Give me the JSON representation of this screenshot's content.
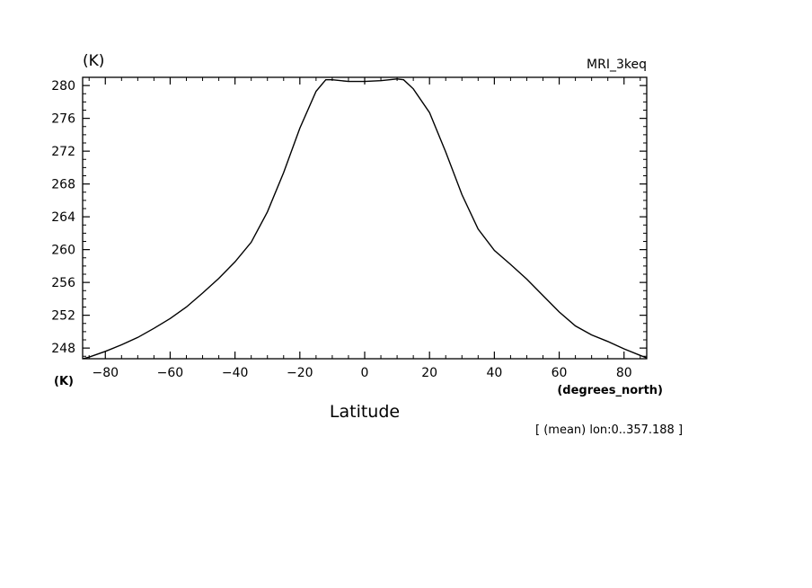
{
  "chart_data": {
    "type": "line",
    "title": "",
    "top_left_label": "(K)",
    "top_right_label": "MRI_3keq",
    "xlabel": "Latitude",
    "x_units": "(degrees_north)",
    "y_units": "(K)",
    "footnote": "[ (mean) lon:0..357.188 ]",
    "xlim": [
      -87,
      87
    ],
    "ylim": [
      246.7,
      281.0
    ],
    "x_ticks": [
      -80,
      -60,
      -40,
      -20,
      0,
      20,
      40,
      60,
      80
    ],
    "x_tick_labels": [
      "−80",
      "−60",
      "−40",
      "−20",
      "0",
      "20",
      "40",
      "60",
      "80"
    ],
    "y_ticks": [
      248,
      252,
      256,
      260,
      264,
      268,
      272,
      276,
      280
    ],
    "y_tick_labels": [
      "248",
      "252",
      "256",
      "260",
      "264",
      "268",
      "272",
      "276",
      "280"
    ],
    "grid": false,
    "series": [
      {
        "name": "",
        "x": [
          -87,
          -85,
          -80,
          -75,
          -70,
          -65,
          -60,
          -55,
          -50,
          -45,
          -40,
          -35,
          -30,
          -25,
          -20,
          -15,
          -12,
          -10,
          -5,
          0,
          5,
          10,
          12,
          15,
          20,
          25,
          30,
          35,
          40,
          45,
          50,
          55,
          60,
          65,
          70,
          75,
          80,
          85,
          87
        ],
        "y": [
          246.7,
          246.9,
          247.6,
          248.4,
          249.3,
          250.4,
          251.6,
          253.0,
          254.7,
          256.5,
          258.5,
          260.9,
          264.6,
          269.4,
          274.8,
          279.3,
          280.7,
          280.7,
          280.5,
          280.5,
          280.6,
          280.8,
          280.7,
          279.6,
          276.7,
          271.9,
          266.7,
          262.5,
          259.9,
          258.2,
          256.4,
          254.4,
          252.4,
          250.7,
          249.6,
          248.8,
          247.9,
          247.1,
          246.8
        ]
      }
    ]
  }
}
